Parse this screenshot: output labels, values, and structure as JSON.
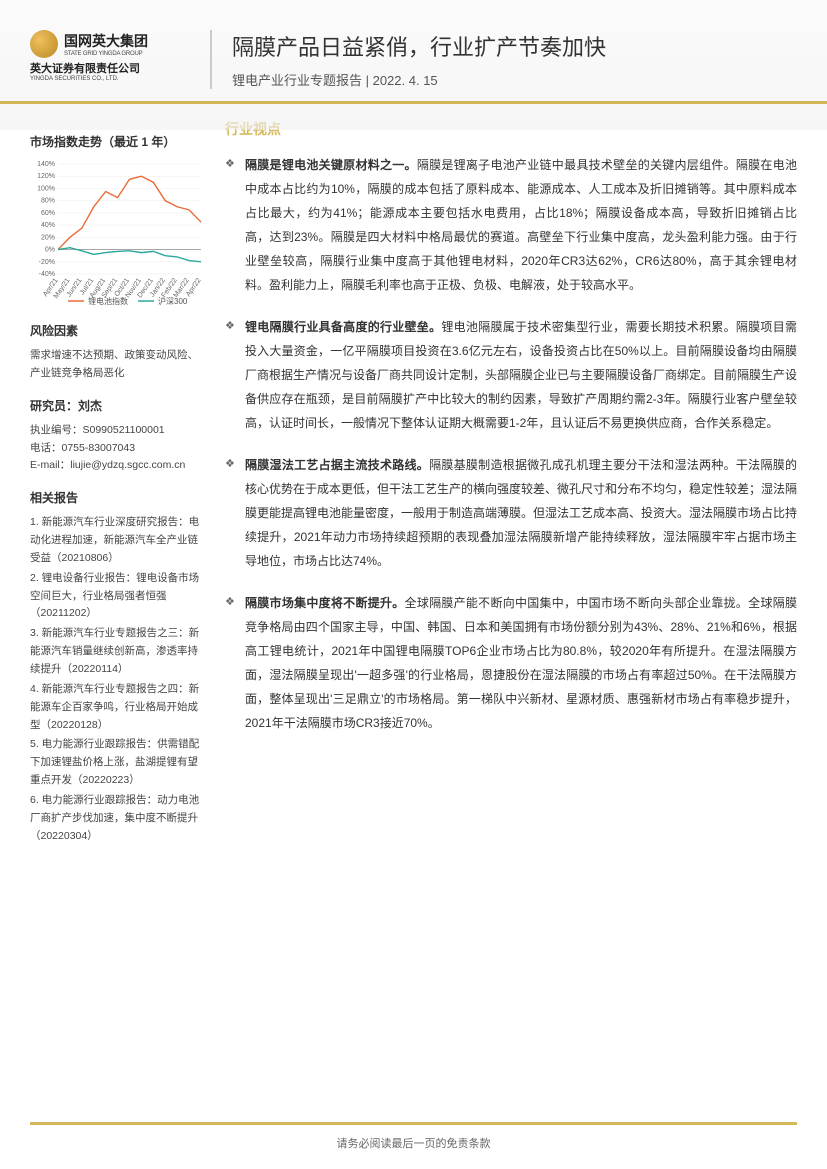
{
  "header": {
    "logo_cn": "国网英大集团",
    "logo_en": "STATE GRID YINGDA GROUP",
    "logo_sub_cn": "英大证券有限责任公司",
    "logo_sub_en": "YINGDA SECURITIES CO., LTD.",
    "title": "隔膜产品日益紧俏，行业扩产节奏加快",
    "subtitle": "锂电产业行业专题报告 | 2022. 4. 15"
  },
  "sidebar": {
    "market_title": "市场指数走势（最近 1 年）",
    "chart": {
      "type": "line",
      "x_labels": [
        "Apr/21",
        "May/21",
        "Jun/21",
        "Jul/21",
        "Aug/21",
        "Sep/21",
        "Oct/21",
        "Nov/21",
        "Dec/21",
        "Jan/22",
        "Feb/22",
        "Mar/22",
        "Apr/22"
      ],
      "y_ticks": [
        "-40%",
        "-20%",
        "0%",
        "20%",
        "40%",
        "60%",
        "80%",
        "100%",
        "120%",
        "140%"
      ],
      "ylim": [
        -40,
        140
      ],
      "series": [
        {
          "name": "锂电池指数",
          "color": "#e86c3a",
          "values": [
            0,
            20,
            35,
            70,
            95,
            85,
            115,
            120,
            110,
            80,
            70,
            65,
            45
          ]
        },
        {
          "name": "沪深300",
          "color": "#2aa89a",
          "values": [
            0,
            3,
            -2,
            -8,
            -5,
            -3,
            -2,
            -5,
            -3,
            -10,
            -12,
            -18,
            -20
          ]
        }
      ],
      "legend_colors": [
        "#e86c3a",
        "#2aa89a"
      ],
      "background_color": "#ffffff",
      "grid_color": "#e8e8e8",
      "axis_fontsize": 7
    },
    "risk_title": "风险因素",
    "risk_text": "需求增速不达预期、政策变动风险、产业链竞争格局恶化",
    "researcher_title": "研究员：刘杰",
    "researcher": {
      "license": "执业编号：S0990521100001",
      "phone": "电话：0755-83007043",
      "email": "E-mail：liujie@ydzq.sgcc.com.cn"
    },
    "reports_title": "相关报告",
    "reports": [
      "1. 新能源汽车行业深度研究报告：电动化进程加速，新能源汽车全产业链受益（20210806）",
      "2. 锂电设备行业报告：锂电设备市场空间巨大，行业格局强者恒强（20211202）",
      "3. 新能源汽车行业专题报告之三：新能源汽车销量继续创新高，渗透率持续提升（20220114）",
      "4. 新能源汽车行业专题报告之四：新能源车企百家争鸣，行业格局开始成型（20220128）",
      "5. 电力能源行业跟踪报告：供需错配下加速锂盐价格上涨，盐湖提锂有望重点开发（20220223）",
      "6. 电力能源行业跟踪报告：动力电池厂商扩产步伐加速，集中度不断提升（20220304）"
    ]
  },
  "main": {
    "section_title": "行业视点",
    "bullets": [
      {
        "lead": "隔膜是锂电池关键原材料之一。",
        "body": "隔膜是锂离子电池产业链中最具技术壁垒的关键内层组件。隔膜在电池中成本占比约为10%，隔膜的成本包括了原料成本、能源成本、人工成本及折旧摊销等。其中原料成本占比最大，约为41%；能源成本主要包括水电费用，占比18%；隔膜设备成本高，导致折旧摊销占比高，达到23%。隔膜是四大材料中格局最优的赛道。高壁垒下行业集中度高，龙头盈利能力强。由于行业壁垒较高，隔膜行业集中度高于其他锂电材料，2020年CR3达62%，CR6达80%，高于其余锂电材料。盈利能力上，隔膜毛利率也高于正极、负极、电解液，处于较高水平。"
      },
      {
        "lead": "锂电隔膜行业具备高度的行业壁垒。",
        "body": "锂电池隔膜属于技术密集型行业，需要长期技术积累。隔膜项目需投入大量资金，一亿平隔膜项目投资在3.6亿元左右，设备投资占比在50%以上。目前隔膜设备均由隔膜厂商根据生产情况与设备厂商共同设计定制，头部隔膜企业已与主要隔膜设备厂商绑定。目前隔膜生产设备供应存在瓶颈，是目前隔膜扩产中比较大的制约因素，导致扩产周期约需2-3年。隔膜行业客户壁垒较高，认证时间长，一般情况下整体认证期大概需要1-2年，且认证后不易更换供应商，合作关系稳定。"
      },
      {
        "lead": "隔膜湿法工艺占据主流技术路线。",
        "body": "隔膜基膜制造根据微孔成孔机理主要分干法和湿法两种。干法隔膜的核心优势在于成本更低，但干法工艺生产的横向强度较差、微孔尺寸和分布不均匀，稳定性较差；湿法隔膜更能提高锂电池能量密度，一般用于制造高端薄膜。但湿法工艺成本高、投资大。湿法隔膜市场占比持续提升，2021年动力市场持续超预期的表现叠加湿法隔膜新增产能持续释放，湿法隔膜牢牢占据市场主导地位，市场占比达74%。"
      },
      {
        "lead": "隔膜市场集中度将不断提升。",
        "body": "全球隔膜产能不断向中国集中，中国市场不断向头部企业靠拢。全球隔膜竞争格局由四个国家主导，中国、韩国、日本和美国拥有市场份额分别为43%、28%、21%和6%，根据高工锂电统计，2021年中国锂电隔膜TOP6企业市场占比为80.8%，较2020年有所提升。在湿法隔膜方面，湿法隔膜呈现出'一超多强'的行业格局，恩捷股份在湿法隔膜的市场占有率超过50%。在干法隔膜方面，整体呈现出'三足鼎立'的市场格局。第一梯队中兴新材、星源材质、惠强新材市场占有率稳步提升，2021年干法隔膜市场CR3接近70%。"
      }
    ]
  },
  "footer": "请务必阅读最后一页的免责条款"
}
